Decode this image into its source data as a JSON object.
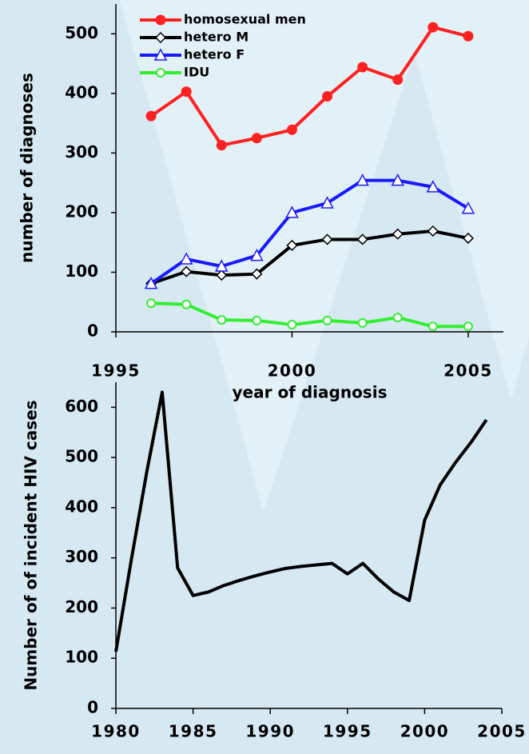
{
  "chart_data": [
    {
      "type": "line",
      "xlabel": "year of diagnosis",
      "ylabel": "number of diagnoses",
      "x": [
        1996,
        1997,
        1998,
        1999,
        2000,
        2001,
        2002,
        2003,
        2004,
        2005
      ],
      "series": [
        {
          "name": "homosexual men",
          "color": "#ff2020",
          "marker": "circle-filled",
          "values": [
            362,
            403,
            313,
            325,
            339,
            395,
            444,
            423,
            511,
            496
          ]
        },
        {
          "name": "hetero M",
          "color": "#000000",
          "marker": "diamond-open",
          "values": [
            81,
            101,
            95,
            97,
            145,
            155,
            155,
            164,
            169,
            157
          ]
        },
        {
          "name": "hetero F",
          "color": "#1a1aff",
          "marker": "triangle-open",
          "values": [
            81,
            122,
            110,
            128,
            200,
            216,
            254,
            254,
            243,
            207
          ]
        },
        {
          "name": "IDU",
          "color": "#33ee33",
          "marker": "circle-open",
          "values": [
            48,
            46,
            20,
            19,
            12,
            19,
            15,
            24,
            9,
            9
          ]
        }
      ],
      "xlim": [
        1995,
        2006
      ],
      "xticks": [
        1995,
        2000,
        2005
      ],
      "ylim": [
        0,
        550
      ],
      "yticks": [
        0,
        100,
        200,
        300,
        400,
        500
      ],
      "legend": "upper left"
    },
    {
      "type": "line",
      "ylabel": "Number of of incident HIV cases",
      "x": [
        1980,
        1981,
        1982,
        1983,
        1984,
        1985,
        1986,
        1987,
        1988,
        1989,
        1990,
        1991,
        1992,
        1993,
        1994,
        1995,
        1996,
        1997,
        1998,
        1999,
        2000,
        2001,
        2002,
        2003,
        2004
      ],
      "series": [
        {
          "color": "#000000",
          "values": [
            113,
            296,
            471,
            630,
            280,
            225,
            232,
            245,
            255,
            264,
            272,
            279,
            283,
            286,
            289,
            268,
            289,
            258,
            232,
            215,
            375,
            445,
            490,
            530,
            575
          ]
        }
      ],
      "xlim": [
        1980,
        2005
      ],
      "xticks": [
        1980,
        1985,
        1990,
        1995,
        2000,
        2005
      ],
      "ylim": [
        0,
        650
      ],
      "yticks": [
        0,
        100,
        200,
        300,
        400,
        500,
        600
      ]
    }
  ]
}
